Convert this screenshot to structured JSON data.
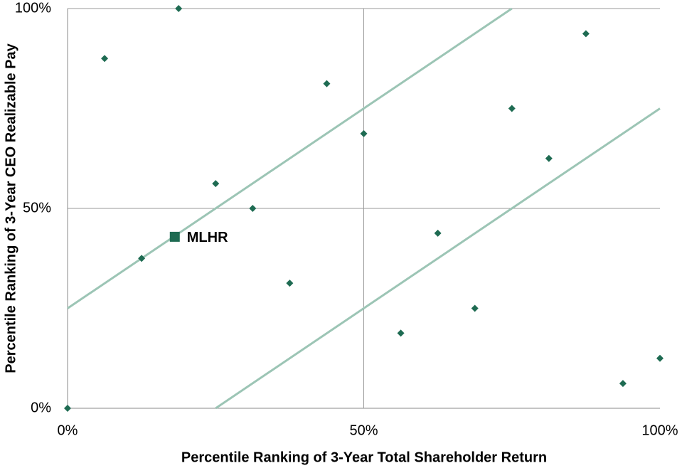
{
  "chart_data": {
    "type": "scatter",
    "x_label": "Percentile Ranking of 3-Year Total Shareholder Return",
    "y_label": "Percentile Ranking of 3-Year CEO Realizable Pay",
    "xlim": [
      0,
      100
    ],
    "ylim": [
      0,
      100
    ],
    "xticks": [
      {
        "value": 0,
        "label": "0%"
      },
      {
        "value": 50,
        "label": "50%"
      },
      {
        "value": 100,
        "label": "100%"
      }
    ],
    "yticks": [
      {
        "value": 0,
        "label": "0%"
      },
      {
        "value": 50,
        "label": "50%"
      },
      {
        "value": 100,
        "label": "100%"
      }
    ],
    "grid": true,
    "series": [
      {
        "color": "#1e6b52",
        "marker": "diamond",
        "x": [
          0,
          6.25,
          12.5,
          18.75,
          25,
          31.25,
          37.5,
          43.75,
          50,
          56.25,
          62.5,
          68.75,
          75,
          81.25,
          87.5,
          93.75,
          100
        ],
        "values": [
          0,
          87.5,
          37.5,
          100,
          56.2,
          50,
          31.3,
          81.2,
          68.7,
          18.8,
          43.8,
          25,
          75,
          62.5,
          93.7,
          6.2,
          12.5
        ]
      },
      {
        "name": "MLHR",
        "color": "#1e6b52",
        "marker": "square",
        "x": [
          18.1
        ],
        "values": [
          42.9
        ]
      }
    ],
    "reference_lines": [
      {
        "color": "#9cc5b5",
        "x": [
          0,
          75
        ],
        "values": [
          25,
          100
        ]
      },
      {
        "color": "#9cc5b5",
        "x": [
          25,
          100
        ],
        "values": [
          0,
          75
        ]
      }
    ]
  }
}
